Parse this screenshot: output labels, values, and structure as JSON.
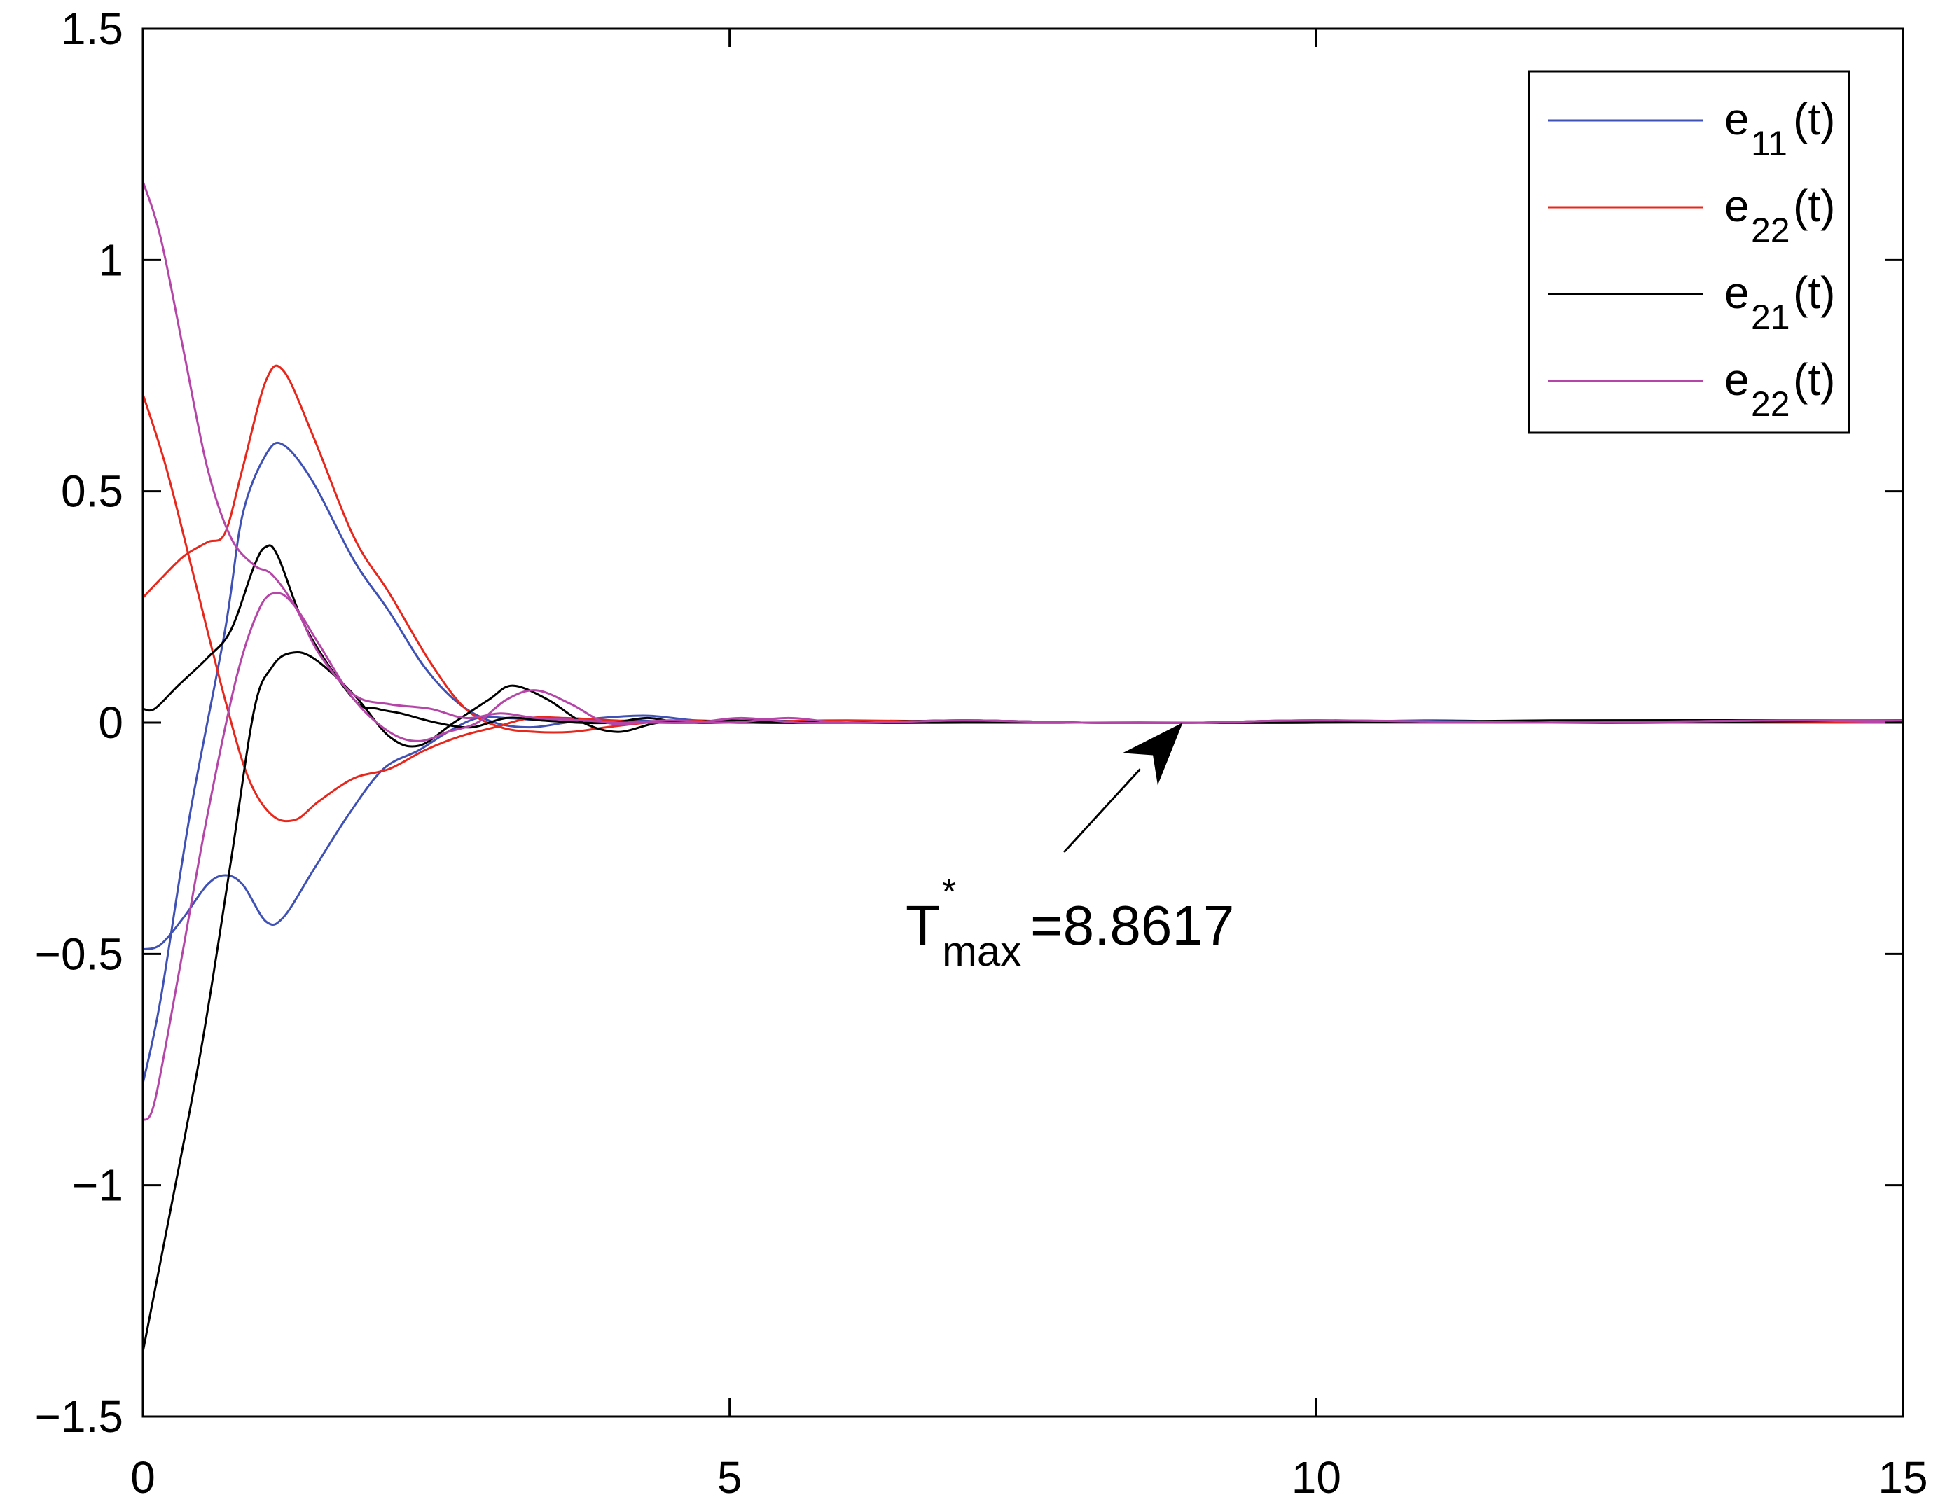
{
  "chart_data": {
    "type": "line",
    "title": "",
    "xlabel": "",
    "ylabel": "",
    "xlim": [
      0,
      15
    ],
    "ylim": [
      -1.5,
      1.5
    ],
    "xticks": [
      0,
      5,
      10,
      15
    ],
    "xtick_labels": [
      "0",
      "5",
      "10",
      "15"
    ],
    "yticks": [
      1.5,
      1,
      0.5,
      0,
      -0.5,
      -1,
      -1.5
    ],
    "ytick_labels": [
      "1.5",
      "1",
      "0.5",
      "0",
      "−0.5",
      "−1",
      "−1.5"
    ],
    "grid": false,
    "box": true,
    "legend_position": "top-right",
    "legend": [
      {
        "base": "e",
        "sub": "11",
        "suffix": "(t)",
        "color": "#3F51B5"
      },
      {
        "base": "e",
        "sub": "22",
        "suffix": "(t)",
        "color": "#E8271C"
      },
      {
        "base": "e",
        "sub": "21",
        "suffix": "(t)",
        "color": "#000000"
      },
      {
        "base": "e",
        "sub": "22",
        "suffix": "(t)",
        "color": "#B546A8"
      }
    ],
    "annotation": {
      "base": "T",
      "sup": "*",
      "sub": "max",
      "suffix": "=8.8617",
      "arrow_to": [
        8.8617,
        0
      ],
      "arrow_from": [
        7.85,
        -0.28
      ],
      "text_at": [
        6.5,
        -0.48
      ]
    },
    "series": [
      {
        "color": "#3F51B5",
        "x": [
          0,
          0.15,
          0.4,
          0.7,
          0.85,
          1.05,
          1.2,
          1.45,
          1.8,
          2.1,
          2.4,
          2.7,
          3.0,
          3.3,
          3.6,
          3.9,
          4.3,
          4.7,
          5.2,
          6.0,
          7.0,
          8.0,
          9.0,
          10.0,
          11.0,
          12.0,
          13.0,
          14.0,
          15.0
        ],
        "y": [
          -0.78,
          -0.6,
          -0.2,
          0.2,
          0.45,
          0.58,
          0.6,
          0.52,
          0.35,
          0.24,
          0.12,
          0.04,
          0.0,
          -0.01,
          0.0,
          0.01,
          0.015,
          0.005,
          0.0,
          0.0,
          0.005,
          0.0,
          0.0,
          0.0,
          0.005,
          0.0,
          0.0,
          0.005,
          0.005
        ]
      },
      {
        "color": "#3F51B5",
        "x": [
          0,
          0.15,
          0.35,
          0.55,
          0.7,
          0.85,
          1.05,
          1.2,
          1.45,
          1.75,
          2.05,
          2.35,
          2.6,
          2.85,
          3.1,
          3.4,
          3.8,
          4.2,
          4.6,
          5.2,
          6.0,
          7.0,
          8.0,
          9.0,
          10.0,
          12.0,
          15.0
        ],
        "y": [
          -0.49,
          -0.48,
          -0.42,
          -0.35,
          -0.33,
          -0.35,
          -0.43,
          -0.42,
          -0.32,
          -0.2,
          -0.1,
          -0.06,
          -0.02,
          0.01,
          0.01,
          0.005,
          0.0,
          0.005,
          0.0,
          0.005,
          0.0,
          0.0,
          0.0,
          0.0,
          0.0,
          0.0,
          0.005
        ]
      },
      {
        "color": "#E8271C",
        "x": [
          0,
          0.15,
          0.35,
          0.55,
          0.7,
          0.85,
          1.05,
          1.2,
          1.45,
          1.8,
          2.1,
          2.45,
          2.75,
          3.05,
          3.35,
          3.65,
          3.95,
          4.3,
          4.7,
          5.2,
          6.0,
          7.0,
          8.0,
          10.0,
          12.0,
          15.0
        ],
        "y": [
          0.27,
          0.31,
          0.36,
          0.39,
          0.41,
          0.55,
          0.74,
          0.76,
          0.62,
          0.4,
          0.28,
          0.13,
          0.03,
          -0.01,
          -0.02,
          -0.02,
          -0.01,
          0.0,
          0.005,
          0.0,
          0.0,
          0.005,
          0.0,
          0.0,
          0.0,
          0.0
        ]
      },
      {
        "color": "#E8271C",
        "x": [
          0,
          0.2,
          0.45,
          0.7,
          0.9,
          1.1,
          1.3,
          1.5,
          1.8,
          2.1,
          2.4,
          2.7,
          3.0,
          3.3,
          3.6,
          4.0,
          4.5,
          5.0,
          6.0,
          8.0,
          10.0,
          12.0,
          15.0
        ],
        "y": [
          0.71,
          0.55,
          0.3,
          0.05,
          -0.12,
          -0.2,
          -0.21,
          -0.17,
          -0.12,
          -0.1,
          -0.06,
          -0.03,
          -0.01,
          0.01,
          0.01,
          0.005,
          0.0,
          0.0,
          0.005,
          0.0,
          0.0,
          0.0,
          0.0
        ]
      },
      {
        "color": "#000000",
        "x": [
          0,
          0.1,
          0.3,
          0.55,
          0.75,
          0.95,
          1.05,
          1.15,
          1.4,
          1.8,
          2.0,
          2.2,
          2.5,
          2.8,
          3.1,
          3.4,
          3.7,
          4.0,
          4.3,
          4.6,
          5.0,
          6.0,
          7.0,
          8.0,
          9.0,
          10.0,
          12.0,
          15.0
        ],
        "y": [
          0.03,
          0.03,
          0.08,
          0.14,
          0.2,
          0.34,
          0.38,
          0.36,
          0.2,
          0.05,
          0.03,
          0.02,
          0.0,
          -0.01,
          0.01,
          0.005,
          0.0,
          0.0,
          0.01,
          0.0,
          0.005,
          0.0,
          0.0,
          0.0,
          0.0,
          0.0,
          0.005,
          0.005
        ]
      },
      {
        "color": "#000000",
        "x": [
          0,
          0.2,
          0.5,
          0.75,
          0.95,
          1.1,
          1.25,
          1.45,
          1.8,
          2.1,
          2.35,
          2.65,
          2.95,
          3.15,
          3.45,
          3.75,
          4.05,
          4.4,
          4.8,
          5.3,
          6.0,
          7.0,
          8.0,
          9.0,
          10.0,
          12.0,
          15.0
        ],
        "y": [
          -1.36,
          -1.1,
          -0.7,
          -0.3,
          0.03,
          0.12,
          0.15,
          0.14,
          0.06,
          -0.03,
          -0.05,
          0.0,
          0.05,
          0.08,
          0.05,
          0.0,
          -0.02,
          0.0,
          0.0,
          0.0,
          0.0,
          0.005,
          0.0,
          0.0,
          0.005,
          0.0,
          0.005
        ]
      },
      {
        "color": "#B546A8",
        "x": [
          0,
          0.15,
          0.35,
          0.55,
          0.75,
          0.95,
          1.1,
          1.3,
          1.5,
          1.8,
          2.1,
          2.45,
          2.75,
          3.05,
          3.35,
          3.75,
          4.1,
          4.5,
          5.0,
          5.5,
          6.0,
          7.0,
          8.0,
          9.0,
          10.0,
          12.0,
          14.0,
          15.0
        ],
        "y": [
          1.17,
          1.05,
          0.8,
          0.55,
          0.4,
          0.34,
          0.32,
          0.25,
          0.15,
          0.06,
          0.04,
          0.03,
          0.01,
          0.02,
          0.01,
          0.005,
          0.0,
          0.005,
          0.0,
          0.01,
          0.0,
          0.005,
          0.0,
          0.0,
          0.005,
          0.0,
          0.005,
          0.005
        ]
      },
      {
        "color": "#B546A8",
        "x": [
          0,
          0.1,
          0.3,
          0.55,
          0.8,
          1.0,
          1.15,
          1.3,
          1.5,
          1.8,
          2.1,
          2.35,
          2.6,
          2.85,
          3.1,
          3.35,
          3.65,
          3.95,
          4.3,
          4.7,
          5.1,
          5.6,
          6.2,
          7.0,
          8.0,
          9.0,
          10.0,
          12.0,
          14.0,
          15.0
        ],
        "y": [
          -0.86,
          -0.82,
          -0.55,
          -0.2,
          0.1,
          0.25,
          0.28,
          0.25,
          0.17,
          0.05,
          -0.02,
          -0.04,
          -0.02,
          0.0,
          0.05,
          0.07,
          0.04,
          0.0,
          0.0,
          0.0,
          0.01,
          0.0,
          0.0,
          0.005,
          0.0,
          0.0,
          0.005,
          0.0,
          0.005,
          0.0
        ]
      }
    ]
  }
}
